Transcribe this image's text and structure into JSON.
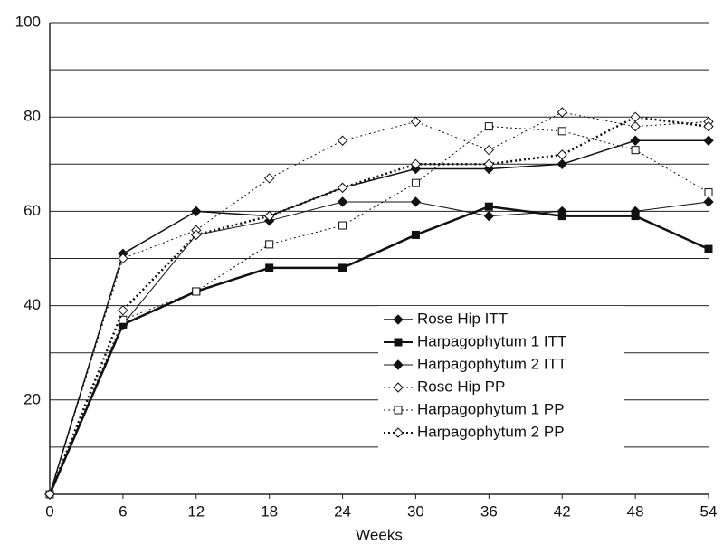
{
  "chart_data": {
    "type": "line",
    "x": [
      0,
      6,
      12,
      18,
      24,
      30,
      36,
      42,
      48,
      54
    ],
    "xlim": [
      0,
      54
    ],
    "xticks": [
      0,
      6,
      12,
      18,
      24,
      30,
      36,
      42,
      48,
      54
    ],
    "ylim": [
      0,
      100
    ],
    "yticks": [
      20,
      40,
      60,
      80,
      100
    ],
    "minor_yticks": [
      10,
      30,
      50,
      70,
      90
    ],
    "xlabel": "Weeks",
    "grid": true,
    "series": [
      {
        "name": "Rose Hip ITT",
        "color": "#111111",
        "marker": "diamond",
        "filled": true,
        "dash": "solid",
        "width": 1.5,
        "values": [
          0,
          51,
          60,
          59,
          65,
          69,
          69,
          70,
          75,
          75
        ]
      },
      {
        "name": "Harpagophytum 1 ITT",
        "color": "#111111",
        "marker": "square",
        "filled": true,
        "dash": "solid",
        "width": 2.5,
        "values": [
          0,
          36,
          43,
          48,
          48,
          55,
          61,
          59,
          59,
          52
        ]
      },
      {
        "name": "Harpagophytum 2 ITT",
        "color": "#111111",
        "marker": "diamond",
        "filled": true,
        "dash": "solid",
        "width": 1,
        "values": [
          0,
          36,
          55,
          58,
          62,
          62,
          59,
          60,
          60,
          62
        ]
      },
      {
        "name": "Rose Hip PP",
        "color": "#111111",
        "marker": "diamond",
        "filled": false,
        "dash": "dotted",
        "width": 1,
        "values": [
          0,
          50,
          56,
          67,
          75,
          79,
          73,
          81,
          78,
          79
        ]
      },
      {
        "name": "Harpagophytum 1 PP",
        "color": "#111111",
        "marker": "square",
        "filled": false,
        "dash": "dotted",
        "width": 1,
        "values": [
          0,
          37,
          43,
          53,
          57,
          66,
          78,
          77,
          73,
          64
        ]
      },
      {
        "name": "Harpagophytum 2 PP",
        "color": "#111111",
        "marker": "diamond",
        "filled": false,
        "dash": "dotted",
        "width": 2.5,
        "values": [
          0,
          39,
          55,
          59,
          65,
          70,
          70,
          72,
          80,
          78
        ]
      }
    ]
  }
}
